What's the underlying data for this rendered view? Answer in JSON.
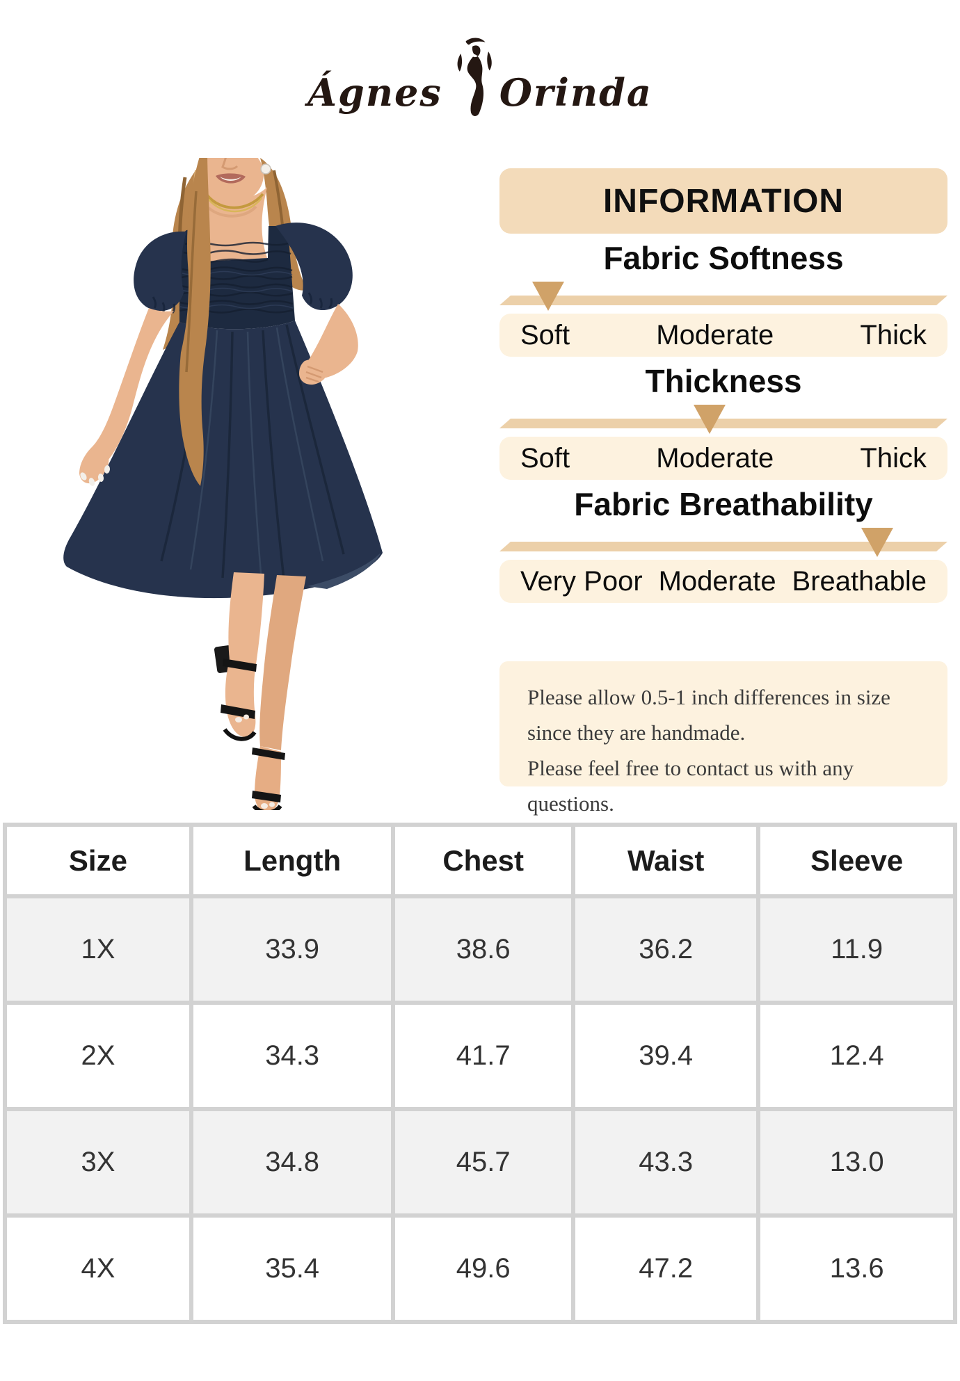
{
  "logo": {
    "first": "Ágnes",
    "second": "Orinda"
  },
  "info": {
    "header": "INFORMATION"
  },
  "sliders": [
    {
      "title": "Fabric Softness",
      "labels": [
        "Soft",
        "Moderate",
        "Thick"
      ],
      "marker_percent": 10.9,
      "selected": "Soft"
    },
    {
      "title": "Thickness",
      "labels": [
        "Soft",
        "Moderate",
        "Thick"
      ],
      "marker_percent": 46.9,
      "selected": "Moderate"
    },
    {
      "title": "Fabric Breathability",
      "labels": [
        "Very Poor",
        "Moderate",
        "Breathable"
      ],
      "marker_percent": 84.3,
      "selected": "Breathable"
    }
  ],
  "note": {
    "lines": [
      "Please allow 0.5-1 inch differences in size",
      "since they are handmade.",
      "Please feel free to contact us with any questions."
    ]
  },
  "size_table": {
    "columns": [
      "Size",
      "Length",
      "Chest",
      "Waist",
      "Sleeve"
    ],
    "rows": [
      [
        "1X",
        "33.9",
        "38.6",
        "36.2",
        "11.9"
      ],
      [
        "2X",
        "34.3",
        "41.7",
        "39.4",
        "12.4"
      ],
      [
        "3X",
        "34.8",
        "45.7",
        "43.3",
        "13.0"
      ],
      [
        "4X",
        "35.4",
        "49.6",
        "47.2",
        "13.6"
      ]
    ],
    "units": "inches"
  },
  "model": {
    "description": "Plus-size model wearing a navy square-neck smocked bodice dress with short puff sleeves, flowing knee-length skirt and black strappy heeled sandals",
    "dress_color": "#26334d"
  },
  "colors": {
    "beige_header": "#f3dbba",
    "bar_tan": "#ecd0a9",
    "marker_tan": "#d0a268",
    "label_bg": "#fdf2df",
    "table_border": "#d2d2d2",
    "row_alt": "#f2f2f2",
    "navy": "#26334d"
  }
}
